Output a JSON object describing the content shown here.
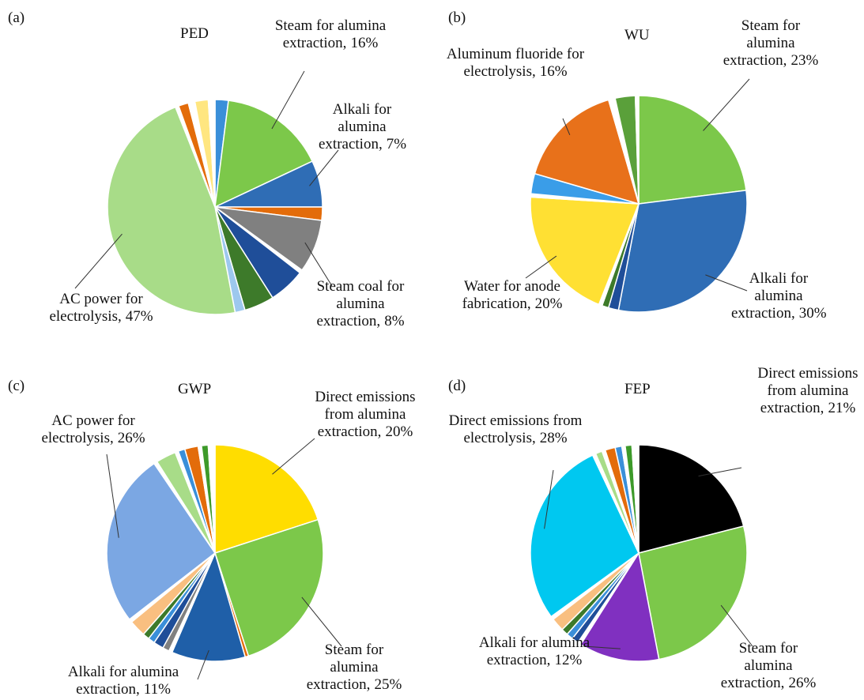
{
  "chart_data": [
    {
      "type": "pie",
      "panel": "(a)",
      "title": "PED",
      "categories": [
        null,
        "Steam for alumina extraction,",
        "Alkali for alumina extraction,",
        null,
        "Steam coal for alumina extraction,",
        null,
        null,
        null,
        null,
        "AC power for electrolysis,",
        null,
        null,
        null,
        null,
        null
      ],
      "values": [
        2,
        16,
        7,
        2,
        8,
        0.5,
        5.5,
        4.5,
        1.5,
        47,
        0.5,
        1.5,
        1,
        2,
        1
      ],
      "value_labels": [
        null,
        "16%",
        "7%",
        null,
        "8%",
        null,
        null,
        null,
        null,
        "47%",
        null,
        null,
        null,
        null,
        null
      ],
      "colors": [
        "#3a8fd9",
        "#7cc84a",
        "#2f6db5",
        "#e36c0a",
        "#808080",
        "#ffffff",
        "#1f4e99",
        "#3d7a2a",
        "#9dc8ee",
        "#a8dc88",
        "#ffffff",
        "#e36c0a",
        "#ffffff",
        "#ffe680",
        "#ffffff"
      ]
    },
    {
      "type": "pie",
      "panel": "(b)",
      "title": "WU",
      "categories": [
        "Steam for alumina extraction,",
        "Alkali for alumina extraction,",
        null,
        null,
        null,
        "Water for anode fabrication,",
        null,
        null,
        "Aluminum fluoride for electrolysis,",
        null,
        null,
        null
      ],
      "values": [
        23,
        30,
        1.5,
        1,
        0.5,
        20,
        0.5,
        3,
        16,
        1,
        3,
        0.5
      ],
      "value_labels": [
        "23%",
        "30%",
        null,
        null,
        null,
        "20%",
        null,
        null,
        "16%",
        null,
        null,
        null
      ],
      "colors": [
        "#7cc84a",
        "#2f6db5",
        "#1f4e99",
        "#3d7a2a",
        "#ffffff",
        "#ffe033",
        "#ffffff",
        "#3a9de8",
        "#e8711a",
        "#ffffff",
        "#5aa03a",
        "#ffffff"
      ]
    },
    {
      "type": "pie",
      "panel": "(c)",
      "title": "GWP",
      "categories": [
        "Direct emissions from alumina extraction,",
        "Steam for alumina extraction,",
        null,
        "Alkali for alumina extraction,",
        null,
        null,
        null,
        null,
        null,
        null,
        null,
        "AC power for electrolysis,",
        null,
        null,
        null,
        null,
        null,
        null,
        null,
        null
      ],
      "values": [
        20,
        25,
        0.5,
        11,
        0.5,
        1,
        1.5,
        1,
        1,
        2.5,
        0.5,
        26,
        0.5,
        3,
        0.5,
        1,
        2,
        0.5,
        1,
        1
      ],
      "value_labels": [
        "20%",
        "25%",
        null,
        "11%",
        null,
        null,
        null,
        null,
        null,
        null,
        null,
        "26%",
        null,
        null,
        null,
        null,
        null,
        null,
        null,
        null
      ],
      "colors": [
        "#ffdd00",
        "#7cc84a",
        "#e36c0a",
        "#1f5fa8",
        "#ffffff",
        "#808080",
        "#1f4e99",
        "#3a8fd9",
        "#3d7a2a",
        "#f9bf80",
        "#ffffff",
        "#7ba7e3",
        "#ffffff",
        "#a8dc88",
        "#ffffff",
        "#3a8fd9",
        "#e36c0a",
        "#ffffff",
        "#3d9a2a",
        "#ffffff"
      ]
    },
    {
      "type": "pie",
      "panel": "(d)",
      "title": "FEP",
      "categories": [
        "Direct emissions from alumina extraction,",
        "Steam for alumina extraction,",
        "Alkali for alumina extraction,",
        null,
        null,
        null,
        null,
        null,
        null,
        "Direct emissions from electrolysis,",
        null,
        null,
        null,
        null,
        null,
        null,
        null,
        null
      ],
      "values": [
        21,
        26,
        12,
        0.5,
        1,
        1,
        1,
        2,
        0.5,
        28,
        0.5,
        1,
        0.5,
        1.5,
        1,
        0.5,
        1,
        1
      ],
      "value_labels": [
        "21%",
        "26%",
        "12%",
        null,
        null,
        null,
        null,
        null,
        null,
        "28%",
        null,
        null,
        null,
        null,
        null,
        null,
        null,
        null
      ],
      "colors": [
        "#000000",
        "#7cc84a",
        "#8030c0",
        "#ffffff",
        "#1f4e99",
        "#3a8fd9",
        "#3d7a2a",
        "#f9bf80",
        "#ffffff",
        "#00c8f0",
        "#ffffff",
        "#a8dc88",
        "#ffffff",
        "#e36c0a",
        "#3a8fd9",
        "#ffffff",
        "#3d9a2a",
        "#ffffff"
      ]
    }
  ]
}
